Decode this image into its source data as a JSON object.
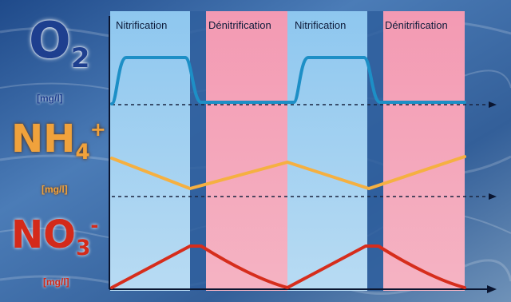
{
  "phases": [
    {
      "label": "Nitrification",
      "type": "aerobic"
    },
    {
      "label": "Dénitrification",
      "type": "anoxic"
    },
    {
      "label": "Nitrification",
      "type": "aerobic"
    },
    {
      "label": "Dénitrification",
      "type": "anoxic"
    }
  ],
  "variables": [
    {
      "symbol": "O",
      "subscript": "2",
      "superscript": "",
      "unit": "[mg/l]",
      "color": "#1e3f8f"
    },
    {
      "symbol": "NH",
      "subscript": "4",
      "superscript": "+",
      "unit": "[mg/l]",
      "color": "#f0a23c"
    },
    {
      "symbol": "NO",
      "subscript": "3",
      "superscript": "-",
      "unit": "[mg/l]",
      "color": "#d42a1a"
    }
  ],
  "colors": {
    "background": "#2f5d9a",
    "nitrification_band": "#a9d3f2",
    "denitrification_band": "#f4a6bc",
    "o2_curve": "#1d8fc6",
    "nh4_curve": "#f5b041",
    "no3_curve": "#d62d1c",
    "axis": "#0a1530"
  }
}
